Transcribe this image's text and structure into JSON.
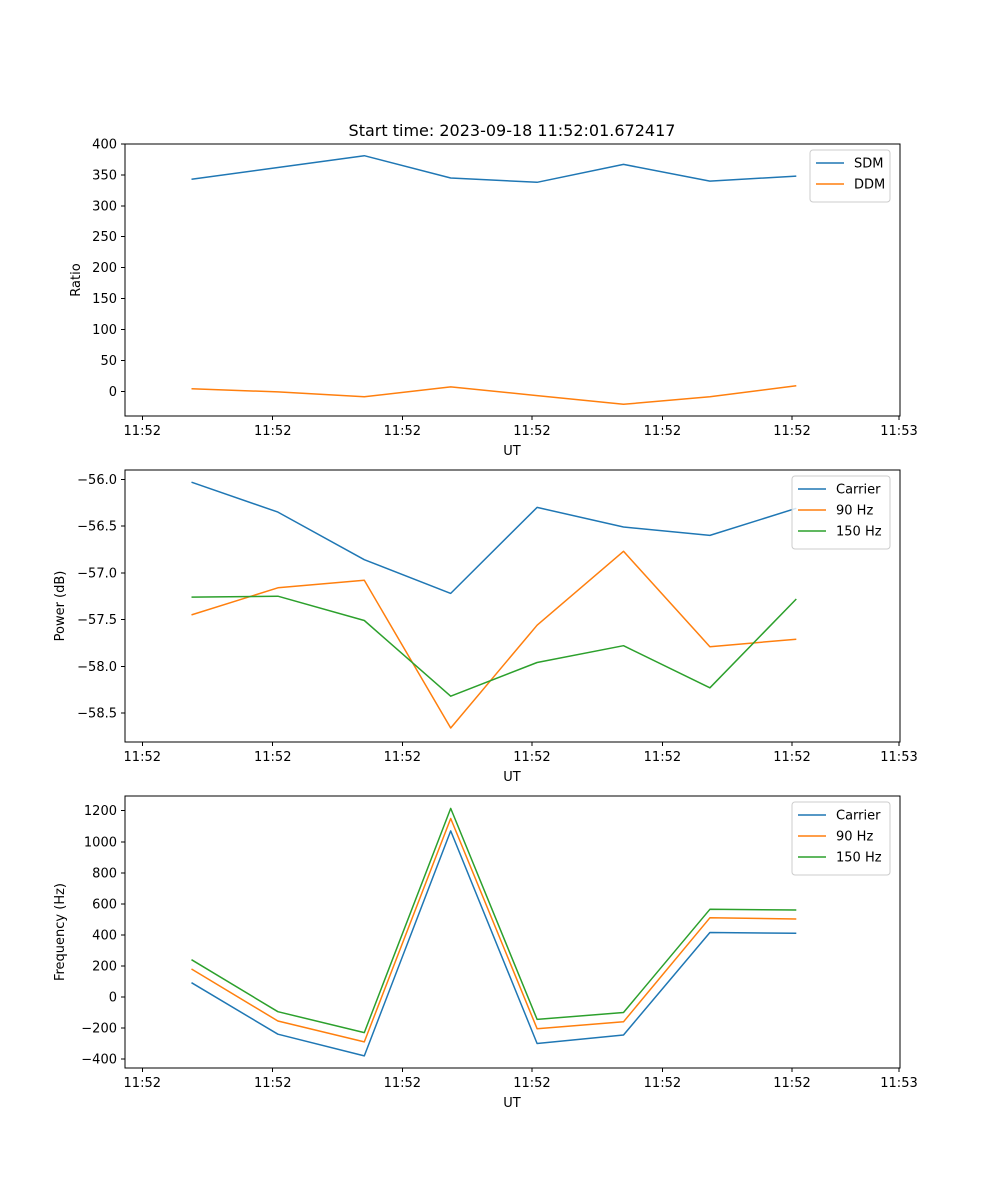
{
  "figure_title": "Start time: 2023-09-18 11:52:01.672417",
  "colors": {
    "blue": "#1f77b4",
    "orange": "#ff7f0e",
    "green": "#2ca02c"
  },
  "chart_data": [
    {
      "type": "line",
      "name": "ratio",
      "title": "Start time: 2023-09-18 11:52:01.672417",
      "xlabel": "UT",
      "ylabel": "Ratio",
      "x": [
        1,
        2,
        3,
        4,
        5,
        6,
        7,
        8
      ],
      "xlim": [
        0.23,
        9.2
      ],
      "xticks": [
        0.43,
        1.94,
        3.44,
        4.94,
        6.45,
        7.95,
        9.45
      ],
      "xtick_labels": [
        "11:52",
        "11:52",
        "11:52",
        "11:52",
        "11:52",
        "11:52",
        "11:53"
      ],
      "ylim": [
        -40,
        400
      ],
      "yticks": [
        0,
        50,
        100,
        150,
        200,
        250,
        300,
        350,
        400
      ],
      "ytick_labels": [
        "0",
        "50",
        "100",
        "150",
        "200",
        "250",
        "300",
        "350",
        "400"
      ],
      "legend_position": "top-right",
      "series": [
        {
          "name": "SDM",
          "color": "#1f77b4",
          "values": [
            343,
            362,
            381,
            345,
            338,
            367,
            340,
            348
          ]
        },
        {
          "name": "DDM",
          "color": "#ff7f0e",
          "values": [
            4,
            -1,
            -9,
            7,
            -7,
            -21,
            -9,
            9
          ]
        }
      ]
    },
    {
      "type": "line",
      "name": "power",
      "title": "",
      "xlabel": "UT",
      "ylabel": "Power (dB)",
      "x": [
        1,
        2,
        3,
        4,
        5,
        6,
        7,
        8
      ],
      "xlim": [
        0.23,
        9.2
      ],
      "xticks": [
        0.43,
        1.94,
        3.44,
        4.94,
        6.45,
        7.95,
        9.45
      ],
      "xtick_labels": [
        "11:52",
        "11:52",
        "11:52",
        "11:52",
        "11:52",
        "11:52",
        "11:53"
      ],
      "ylim": [
        -58.81,
        -55.9
      ],
      "yticks": [
        -58.5,
        -58.0,
        -57.5,
        -57.0,
        -56.5,
        -56.0
      ],
      "ytick_labels": [
        "−58.5",
        "−58.0",
        "−57.5",
        "−57.0",
        "−56.5",
        "−56.0"
      ],
      "legend_position": "top-right",
      "series": [
        {
          "name": "Carrier",
          "color": "#1f77b4",
          "values": [
            -56.03,
            -56.35,
            -56.86,
            -57.22,
            -56.3,
            -56.51,
            -56.6,
            -56.31
          ]
        },
        {
          "name": "90 Hz",
          "color": "#ff7f0e",
          "values": [
            -57.45,
            -57.16,
            -57.08,
            -58.66,
            -57.56,
            -56.77,
            -57.79,
            -57.71
          ]
        },
        {
          "name": "150 Hz",
          "color": "#2ca02c",
          "values": [
            -57.26,
            -57.25,
            -57.51,
            -58.32,
            -57.96,
            -57.78,
            -58.23,
            -57.28
          ]
        }
      ]
    },
    {
      "type": "line",
      "name": "frequency",
      "title": "",
      "xlabel": "UT",
      "ylabel": "Frequency (Hz)",
      "x": [
        1,
        2,
        3,
        4,
        5,
        6,
        7,
        8
      ],
      "xlim": [
        0.23,
        9.2
      ],
      "xticks": [
        0.43,
        1.94,
        3.44,
        4.94,
        6.45,
        7.95,
        9.45
      ],
      "xtick_labels": [
        "11:52",
        "11:52",
        "11:52",
        "11:52",
        "11:52",
        "11:52",
        "11:53"
      ],
      "ylim": [
        -458,
        1295
      ],
      "yticks": [
        -400,
        -200,
        0,
        200,
        400,
        600,
        800,
        1000,
        1200
      ],
      "ytick_labels": [
        "−400",
        "−200",
        "0",
        "200",
        "400",
        "600",
        "800",
        "1000",
        "1200"
      ],
      "legend_position": "top-right",
      "series": [
        {
          "name": "Carrier",
          "color": "#1f77b4",
          "values": [
            92,
            -240,
            -380,
            1070,
            -300,
            -245,
            415,
            410
          ]
        },
        {
          "name": "90 Hz",
          "color": "#ff7f0e",
          "values": [
            180,
            -155,
            -290,
            1150,
            -205,
            -160,
            510,
            502
          ]
        },
        {
          "name": "150 Hz",
          "color": "#2ca02c",
          "values": [
            240,
            -95,
            -230,
            1215,
            -145,
            -100,
            565,
            560
          ]
        }
      ]
    }
  ]
}
